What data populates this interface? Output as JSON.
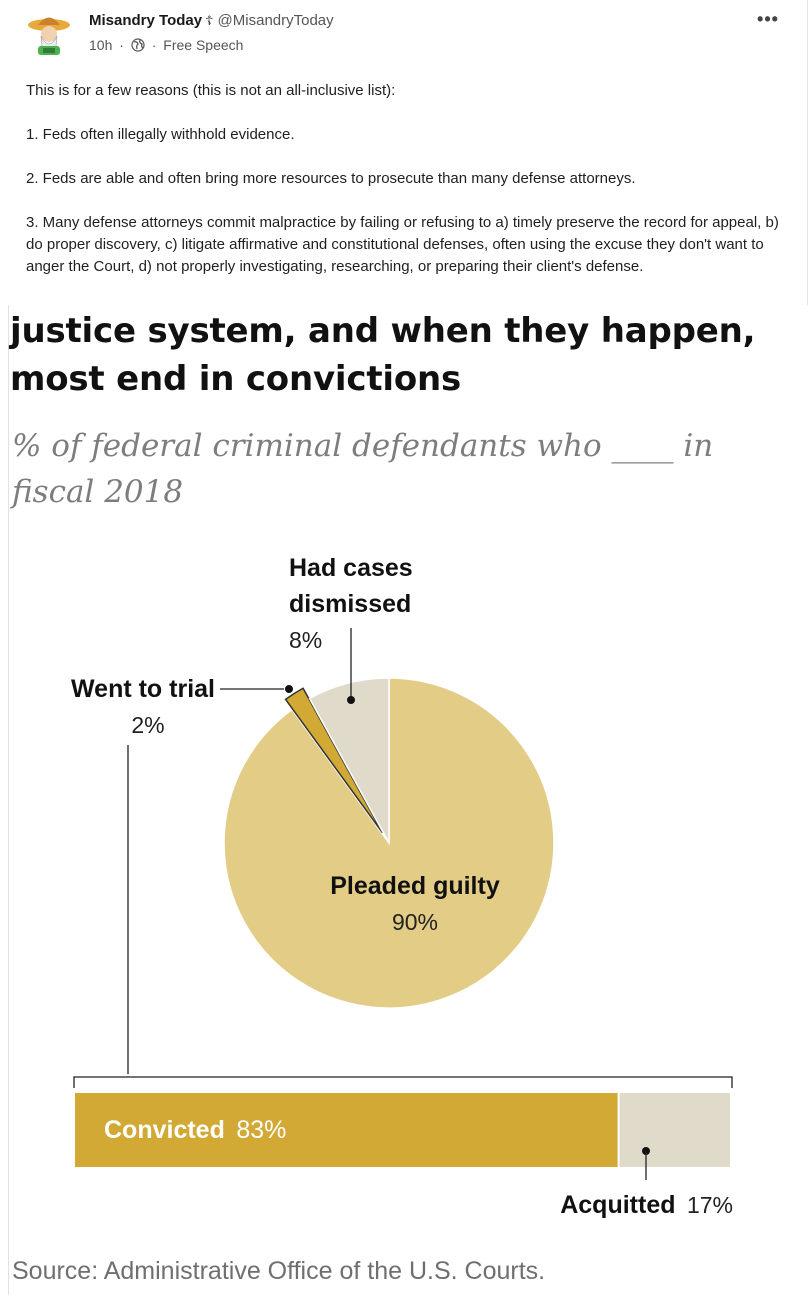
{
  "post": {
    "author_name": "Misandry Today",
    "author_badge": "☦",
    "handle": "@MisandryToday",
    "time": "10h",
    "separator": "·",
    "audience_icon": "globe-icon",
    "channel": "Free Speech",
    "more_label": "•••",
    "body": {
      "intro": "This is for a few reasons (this is not an all-inclusive list):",
      "point_1": "1. Feds often illegally withhold evidence.",
      "point_2": "2. Feds are able and often bring more resources to prosecute than many defense attorneys.",
      "point_3": "3. Many defense attorneys commit malpractice by failing or refusing to a) timely preserve the record for appeal, b) do proper discovery, c) litigate affirmative and constitutional defenses, often using the excuse they don't want to anger the Court, d) not properly investigating, researching, or preparing their client's defense."
    }
  },
  "infographic": {
    "headline_line_1": "justice system, and when they happen,",
    "headline_line_2": "most end in convictions",
    "subtitle_line_1": "% of federal criminal defendants who ____ in",
    "subtitle_line_2": "fiscal 2018",
    "source": "Source: Administrative Office of the U.S. Courts."
  },
  "chart_data": [
    {
      "type": "pie",
      "categories": [
        "Pleaded guilty",
        "Went to trial",
        "Had cases dismissed"
      ],
      "values": [
        90,
        2,
        8
      ],
      "labels": {
        "pleaded_name": "Pleaded guilty",
        "pleaded_pct": "90%",
        "trial_name": "Went to trial",
        "trial_pct": "2%",
        "dismissed_name_1": "Had cases",
        "dismissed_name_2": "dismissed",
        "dismissed_pct": "8%"
      },
      "colors": {
        "Pleaded guilty": "#e3cd86",
        "Went to trial": "#d2a935",
        "Had cases dismissed": "#dfdac9"
      }
    },
    {
      "type": "bar",
      "orientation": "horizontal-stacked",
      "title": "Went to trial",
      "categories": [
        "Convicted",
        "Acquitted"
      ],
      "values": [
        83,
        17
      ],
      "labels": {
        "convicted_name": "Convicted",
        "convicted_pct": "83%",
        "acquitted_name": "Acquitted",
        "acquitted_pct": "17%"
      },
      "colors": {
        "Convicted": "#d2a935",
        "Acquitted": "#dfdac9"
      }
    }
  ]
}
